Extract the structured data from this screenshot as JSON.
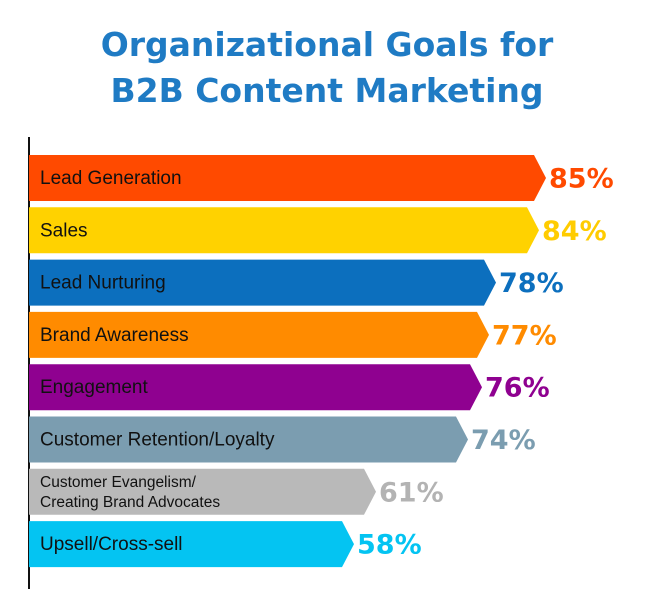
{
  "chart_data": {
    "type": "bar",
    "orientation": "horizontal",
    "title": [
      "Organizational Goals for",
      "B2B Content Marketing"
    ],
    "xlim": [
      0,
      100
    ],
    "grid": false,
    "legend": "none",
    "categories": [
      [
        "Lead Generation"
      ],
      [
        "Sales"
      ],
      [
        "Lead Nurturing"
      ],
      [
        "Brand Awareness"
      ],
      [
        "Engagement"
      ],
      [
        "Customer Retention/Loyalty"
      ],
      [
        "Customer Evangelism/",
        "Creating Brand Advocates"
      ],
      [
        "Upsell/Cross-sell"
      ]
    ],
    "values": [
      85,
      84,
      78,
      77,
      76,
      74,
      61,
      58
    ],
    "value_labels": [
      "85%",
      "84%",
      "78%",
      "77%",
      "76%",
      "74%",
      "61%",
      "58%"
    ],
    "bar_colors": [
      "#ff4a00",
      "#ffd200",
      "#0c6fbe",
      "#ff8b00",
      "#8f0190",
      "#7b9db0",
      "#b9b9b9",
      "#04c4f2"
    ],
    "label_colors": [
      "#ff4a00",
      "#ffcc00",
      "#0c6fbe",
      "#ff8b00",
      "#8f0190",
      "#7b9db0",
      "#b3b3b3",
      "#04c4f2"
    ]
  }
}
